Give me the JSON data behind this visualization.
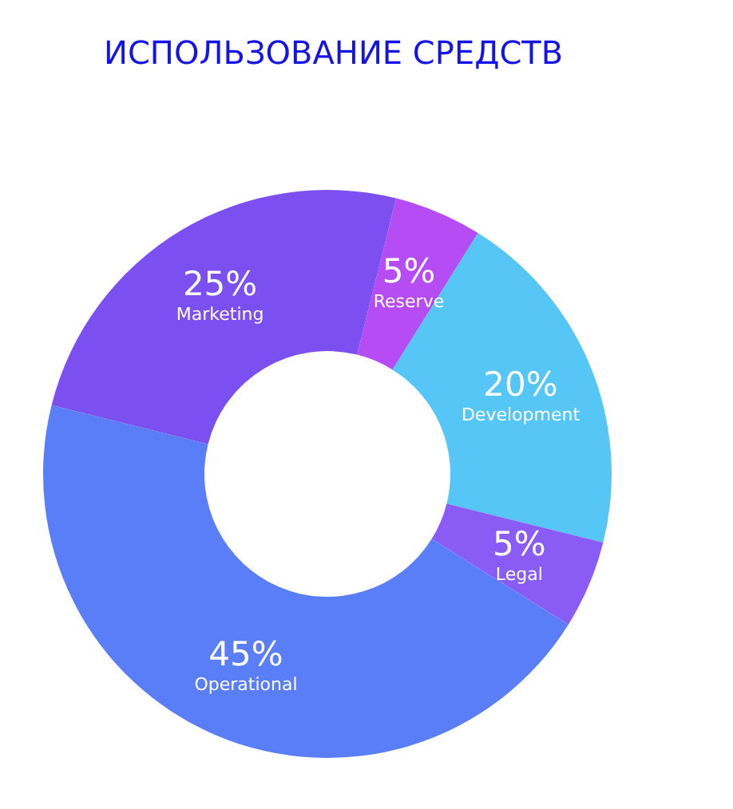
{
  "chart_data": {
    "type": "donut",
    "title": "ИСПОЛЬЗОВАНИЕ СРЕДСТВ",
    "categories": [
      "Reserve",
      "Development",
      "Legal",
      "Operational",
      "Marketing"
    ],
    "values": [
      5,
      20,
      5,
      45,
      25
    ],
    "colors": [
      "#b64cf3",
      "#56c6f6",
      "#8a5cf5",
      "#5a7ef7",
      "#7b4ff0"
    ],
    "value_labels": [
      "5%",
      "20%",
      "5%",
      "45%",
      "25%"
    ],
    "legend": false
  }
}
